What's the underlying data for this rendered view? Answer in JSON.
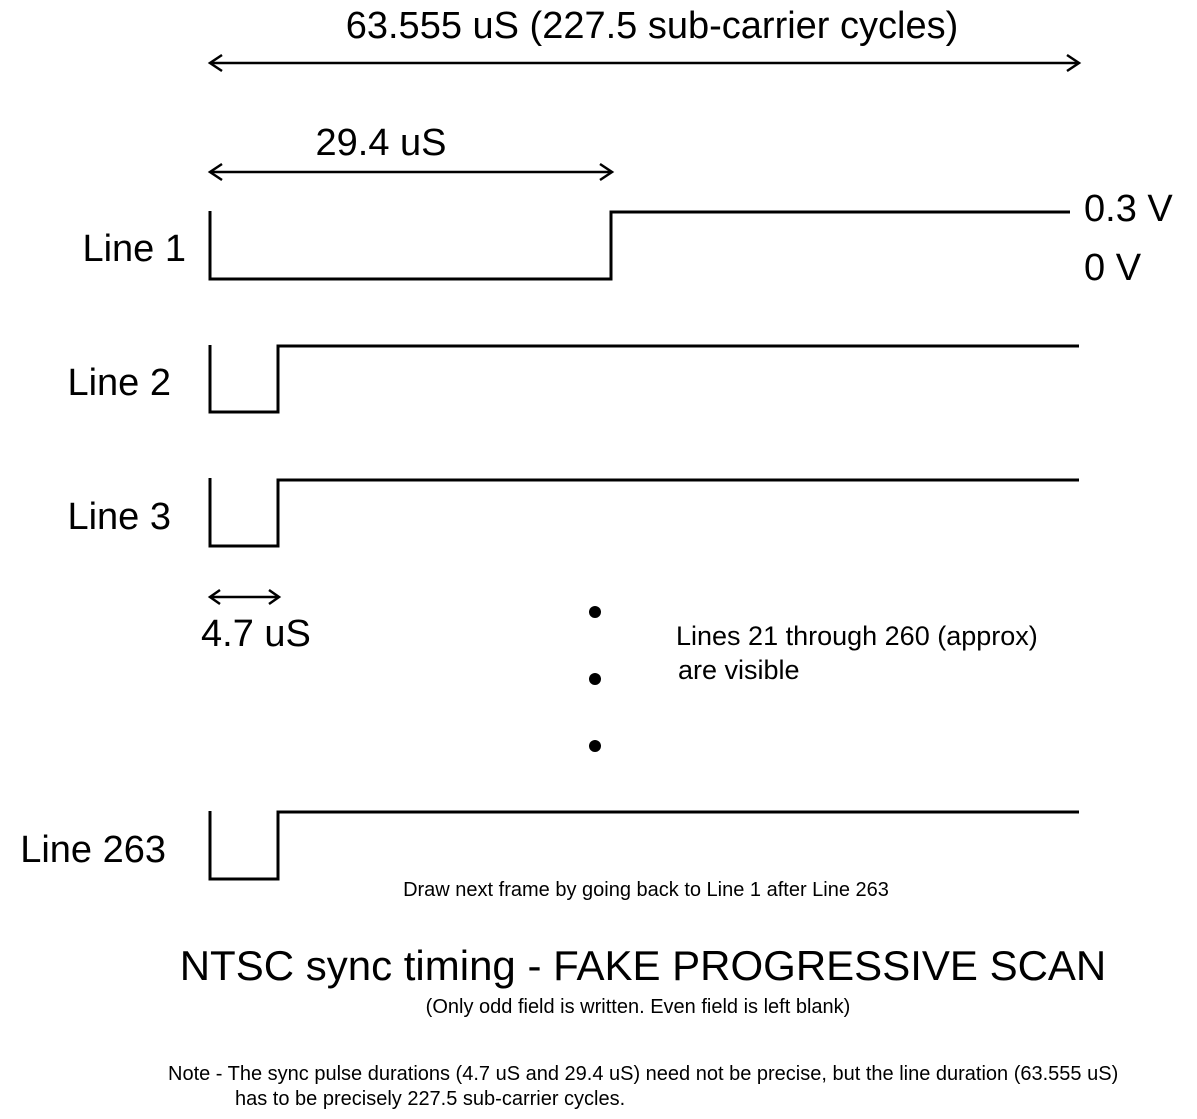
{
  "dimensions": {
    "line_period": "63.555 uS (227.5 sub-carrier cycles)",
    "long_sync": "29.4 uS",
    "short_sync": "4.7 uS"
  },
  "levels": {
    "high": "0.3 V",
    "low": "0 V"
  },
  "lines": [
    {
      "label": "Line 1"
    },
    {
      "label": "Line 2"
    },
    {
      "label": "Line 3"
    },
    {
      "label": "Line 263"
    }
  ],
  "visible_note": {
    "line1": "Lines 21 through 260 (approx)",
    "line2": "are visible"
  },
  "next_frame_note": "Draw next frame by going back to Line 1 after Line 263",
  "title": "NTSC sync timing - FAKE PROGRESSIVE SCAN",
  "subtitle": "(Only odd field is written. Even field is left blank)",
  "footnote": {
    "line1": "Note - The sync pulse durations (4.7 uS and 29.4 uS) need not be precise, but the line duration (63.555 uS)",
    "line2": "has to be precisely 227.5 sub-carrier cycles."
  }
}
